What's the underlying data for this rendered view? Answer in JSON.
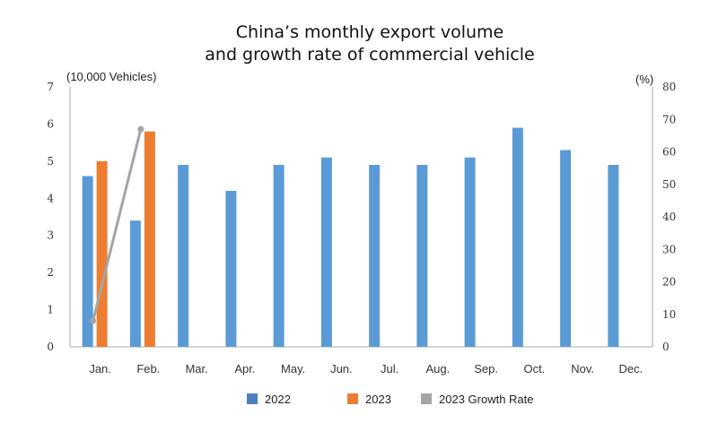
{
  "chart_data": {
    "type": "bar",
    "title": [
      "China’s monthly export volume",
      "and growth rate of commercial vehicle"
    ],
    "ylabel": "(10,000 Vehicles)",
    "y2label": "(%)",
    "ylim": [
      0,
      7
    ],
    "y2lim": [
      0,
      80
    ],
    "yticks": [
      "0",
      "1",
      "2",
      "3",
      "4",
      "5",
      "6",
      "7"
    ],
    "y2ticks": [
      "0",
      "10",
      "20",
      "30",
      "40",
      "50",
      "60",
      "70",
      "80"
    ],
    "grid": false,
    "legend_position": "bottom",
    "categories": [
      "Jan.",
      "Feb.",
      "Mar.",
      "Apr.",
      "May.",
      "Jun.",
      "Jul.",
      "Aug.",
      "Sep.",
      "Oct.",
      "Nov.",
      "Dec."
    ],
    "series": [
      {
        "name": "2022",
        "type": "bar",
        "axis": "left",
        "color": "#5b9bd5",
        "values": [
          4.6,
          3.4,
          4.9,
          4.2,
          4.9,
          5.1,
          4.9,
          4.9,
          5.1,
          5.9,
          5.3,
          4.9
        ]
      },
      {
        "name": "2023",
        "type": "bar",
        "axis": "left",
        "color": "#ed7d31",
        "values": [
          5.0,
          5.8,
          null,
          null,
          null,
          null,
          null,
          null,
          null,
          null,
          null,
          null
        ]
      },
      {
        "name": "2023 Growth Rate",
        "type": "line",
        "axis": "right",
        "color": "#a5a5a5",
        "values": [
          8,
          67,
          null,
          null,
          null,
          null,
          null,
          null,
          null,
          null,
          null,
          null
        ]
      }
    ]
  }
}
